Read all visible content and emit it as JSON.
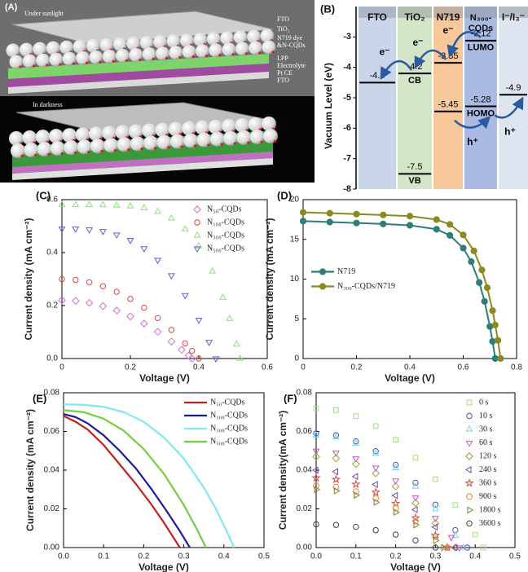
{
  "panel_a": {
    "label": "(A)",
    "top_caption": "Under sunlight",
    "layers": [
      "FTO",
      "TiO₂",
      "N719 dye",
      "&N-CQDs",
      "LPP",
      "Electrolyte",
      "Pt CE",
      "FTO"
    ],
    "bottom_caption": "In darkness"
  },
  "chart_data": [
    {
      "type": "energy-level",
      "label": "(B)",
      "ylabel": "Vacuum Level (eV)",
      "ylim": [
        -8,
        -2
      ],
      "yticks": [
        -3,
        -4,
        -5,
        -6,
        -7,
        -8
      ],
      "columns": [
        {
          "name": [
            "FTO"
          ],
          "color": "#c9d6ea",
          "levels": [
            -4.5
          ],
          "level_names": [
            null
          ]
        },
        {
          "name": [
            "TiO₂"
          ],
          "color": "#d4e6c8",
          "levels": [
            -4.2,
            -7.5
          ],
          "level_names": [
            "CB",
            "VB"
          ]
        },
        {
          "name": [
            "N719"
          ],
          "color": "#f6c89a",
          "levels": [
            -3.85,
            -5.45
          ],
          "level_names": [
            null,
            null
          ]
        },
        {
          "name": [
            "N₃₀₀-",
            "CQDs"
          ],
          "color": "#aabbe3",
          "levels": [
            -3.12,
            -5.28
          ],
          "level_names": [
            "LUMO",
            "HOMO"
          ]
        },
        {
          "name": [
            "I⁻/I₃⁻"
          ],
          "color": "#dfe5f0",
          "levels": [
            -4.9
          ],
          "level_names": [
            null
          ]
        }
      ],
      "annotations": [
        "e⁻",
        "e⁻",
        "e⁻",
        "h⁺",
        "h⁺"
      ]
    },
    {
      "type": "scatter",
      "label": "(C)",
      "xlabel": "Voltage (V)",
      "ylabel": "Current density (mA cm⁻²)",
      "xlim": [
        0,
        0.6
      ],
      "xticks": [
        0,
        0.2,
        0.4,
        0.6
      ],
      "ylim": [
        0,
        0.6
      ],
      "yticks": [
        {
          "value": 0,
          "label": "0.0"
        },
        0.2,
        0.4,
        0.6
      ],
      "legend": "upper right",
      "series": [
        {
          "name": "N₅₀-CQDs",
          "color": "#d070d0",
          "marker": "diamond",
          "x": [
            0,
            0.04,
            0.08,
            0.12,
            0.16,
            0.2,
            0.24,
            0.28,
            0.32,
            0.35,
            0.37,
            0.38
          ],
          "values": [
            0.22,
            0.218,
            0.21,
            0.198,
            0.181,
            0.159,
            0.132,
            0.101,
            0.064,
            0.033,
            0.011,
            0
          ]
        },
        {
          "name": "N₁₀₀-CQDs",
          "color": "#d84848",
          "marker": "circle",
          "x": [
            0,
            0.04,
            0.08,
            0.12,
            0.16,
            0.2,
            0.24,
            0.28,
            0.32,
            0.36,
            0.38,
            0.4
          ],
          "values": [
            0.3,
            0.297,
            0.288,
            0.273,
            0.252,
            0.225,
            0.192,
            0.153,
            0.108,
            0.057,
            0.029,
            0
          ]
        },
        {
          "name": "N₃₀₀-CQDs",
          "color": "#8ee07a",
          "marker": "triangle",
          "x": [
            0,
            0.04,
            0.08,
            0.12,
            0.16,
            0.2,
            0.24,
            0.28,
            0.32,
            0.36,
            0.4,
            0.44,
            0.47,
            0.49,
            0.51,
            0.52
          ],
          "values": [
            0.58,
            0.58,
            0.58,
            0.58,
            0.578,
            0.575,
            0.568,
            0.554,
            0.529,
            0.488,
            0.424,
            0.329,
            0.23,
            0.15,
            0.053,
            0
          ]
        },
        {
          "name": "N₅₀₀-CQDs",
          "color": "#6a5ad0",
          "marker": "triangle-down",
          "x": [
            0,
            0.04,
            0.08,
            0.12,
            0.16,
            0.2,
            0.24,
            0.28,
            0.32,
            0.36,
            0.4,
            0.43,
            0.45
          ],
          "values": [
            0.49,
            0.49,
            0.487,
            0.481,
            0.468,
            0.447,
            0.416,
            0.372,
            0.314,
            0.239,
            0.146,
            0.062,
            0
          ]
        }
      ]
    },
    {
      "type": "line",
      "markers": true,
      "label": "(D)",
      "xlabel": "Voltage (V)",
      "ylabel": "Current density (mA cm⁻²)",
      "xlim": [
        0,
        0.8
      ],
      "xticks": [
        0,
        0.2,
        0.4,
        0.6,
        0.8
      ],
      "ylim": [
        0,
        20
      ],
      "yticks": [
        0,
        5,
        10,
        15,
        20
      ],
      "legend": "center left",
      "series": [
        {
          "name": "N719",
          "color": "#2e7d7a",
          "marker": "circle",
          "x": [
            0,
            0.1,
            0.2,
            0.3,
            0.4,
            0.5,
            0.55,
            0.6,
            0.63,
            0.66,
            0.68,
            0.7,
            0.71,
            0.72
          ],
          "values": [
            17.3,
            17.18,
            17.06,
            16.94,
            16.77,
            16.27,
            15.5,
            13.9,
            12.19,
            9.57,
            7.19,
            4.03,
            2.15,
            0
          ]
        },
        {
          "name": "N₃₀₀-CQDs/N719",
          "color": "#8a8a20",
          "marker": "circle",
          "x": [
            0,
            0.1,
            0.2,
            0.3,
            0.4,
            0.5,
            0.55,
            0.6,
            0.64,
            0.67,
            0.69,
            0.71,
            0.72,
            0.73,
            0.74
          ],
          "values": [
            18.4,
            18.29,
            18.18,
            18.07,
            17.92,
            17.49,
            16.88,
            15.56,
            13.55,
            11.14,
            8.91,
            6.03,
            4.22,
            2.3,
            0
          ]
        }
      ]
    },
    {
      "type": "line",
      "label": "(E)",
      "xlabel": "Voltage (V)",
      "ylabel": "Current density (mA cm⁻²)",
      "xlim": [
        0,
        0.5
      ],
      "xticks": [
        {
          "value": 0,
          "label": "0.0"
        },
        0.1,
        0.2,
        0.3,
        0.4,
        0.5
      ],
      "ylim": [
        0,
        0.08
      ],
      "yticks": [
        {
          "value": 0,
          "label": "0.00"
        },
        0.02,
        0.04,
        0.06,
        0.08
      ],
      "legend": "upper right",
      "series": [
        {
          "name": "N₅₀-CQDs",
          "color": "#c02020",
          "x": [
            0,
            0.03,
            0.06,
            0.1,
            0.14,
            0.18,
            0.22,
            0.25,
            0.27,
            0.29
          ],
          "values": [
            0.068,
            0.065,
            0.061,
            0.053,
            0.043,
            0.033,
            0.022,
            0.013,
            0.0065,
            0
          ]
        },
        {
          "name": "N₁₀₀-CQDs",
          "color": "#1a1aa0",
          "x": [
            0,
            0.03,
            0.06,
            0.1,
            0.14,
            0.18,
            0.22,
            0.26,
            0.29,
            0.31,
            0.315
          ],
          "values": [
            0.069,
            0.0674,
            0.0642,
            0.058,
            0.05,
            0.041,
            0.03,
            0.018,
            0.0085,
            0.0017,
            0
          ]
        },
        {
          "name": "N₃₀₀-CQDs",
          "color": "#80e8f0",
          "x": [
            0,
            0.05,
            0.1,
            0.15,
            0.2,
            0.25,
            0.3,
            0.35,
            0.38,
            0.41,
            0.425
          ],
          "values": [
            0.074,
            0.0738,
            0.0727,
            0.07,
            0.065,
            0.057,
            0.046,
            0.031,
            0.02,
            0.007,
            0
          ]
        },
        {
          "name": "N₅₀₀-CQDs",
          "color": "#70d040",
          "x": [
            0,
            0.05,
            0.1,
            0.15,
            0.2,
            0.25,
            0.3,
            0.33,
            0.35,
            0.355
          ],
          "values": [
            0.071,
            0.07,
            0.0666,
            0.0604,
            0.0509,
            0.0382,
            0.022,
            0.0105,
            0.0022,
            0
          ]
        }
      ]
    },
    {
      "type": "scatter",
      "label": "(F)",
      "xlabel": "Voltage (V)",
      "ylabel": "Current density(mA cm⁻²)",
      "xlim": [
        0,
        0.5
      ],
      "xticks": [
        {
          "value": 0,
          "label": "0.0"
        },
        0.1,
        0.2,
        0.3,
        0.4,
        0.5
      ],
      "ylim": [
        0,
        0.08
      ],
      "yticks": [
        {
          "value": 0,
          "label": "0.00"
        },
        0.02,
        0.04,
        0.06,
        0.08
      ],
      "legend": "upper right",
      "series": [
        {
          "name": "0 s",
          "color": "#a0e080",
          "marker": "square",
          "x": [
            0,
            0.05,
            0.1,
            0.15,
            0.2,
            0.25,
            0.3,
            0.35,
            0.4,
            0.42
          ],
          "values": [
            0.072,
            0.071,
            0.0679,
            0.0628,
            0.0557,
            0.0465,
            0.0353,
            0.022,
            0.0067,
            0
          ]
        },
        {
          "name": "10 s",
          "color": "#5050c0",
          "marker": "circle",
          "x": [
            0,
            0.05,
            0.1,
            0.15,
            0.2,
            0.25,
            0.3,
            0.35,
            0.38
          ],
          "values": [
            0.059,
            0.058,
            0.0549,
            0.0498,
            0.0427,
            0.0335,
            0.0222,
            0.009,
            0
          ]
        },
        {
          "name": "30 s",
          "color": "#70d8e8",
          "marker": "triangle",
          "x": [
            0,
            0.05,
            0.1,
            0.15,
            0.2,
            0.25,
            0.3,
            0.35,
            0.37
          ],
          "values": [
            0.058,
            0.057,
            0.0538,
            0.0485,
            0.0411,
            0.0315,
            0.0199,
            0.0061,
            0
          ]
        },
        {
          "name": "60 s",
          "color": "#d050d0",
          "marker": "triangle-down",
          "x": [
            0,
            0.05,
            0.1,
            0.15,
            0.2,
            0.25,
            0.3,
            0.34,
            0.36
          ],
          "values": [
            0.05,
            0.049,
            0.0461,
            0.0413,
            0.0346,
            0.0259,
            0.0153,
            0.0054,
            0
          ]
        },
        {
          "name": "120 s",
          "color": "#a0a040",
          "marker": "diamond",
          "x": [
            0,
            0.05,
            0.1,
            0.15,
            0.2,
            0.25,
            0.3,
            0.35
          ],
          "values": [
            0.047,
            0.0461,
            0.0432,
            0.0384,
            0.0316,
            0.023,
            0.0125,
            0
          ]
        },
        {
          "name": "240 s",
          "color": "#7050a0",
          "marker": "triangle-left",
          "x": [
            0,
            0.05,
            0.1,
            0.15,
            0.2,
            0.25,
            0.3,
            0.35
          ],
          "values": [
            0.04,
            0.0392,
            0.0367,
            0.0326,
            0.0269,
            0.0196,
            0.0106,
            0
          ]
        },
        {
          "name": "360 s",
          "color": "#d04848",
          "marker": "star",
          "x": [
            0,
            0.05,
            0.1,
            0.15,
            0.2,
            0.25,
            0.3,
            0.33
          ],
          "values": [
            0.036,
            0.0352,
            0.0327,
            0.0286,
            0.0228,
            0.0153,
            0.0063,
            0
          ]
        },
        {
          "name": "900 s",
          "color": "#e09040",
          "marker": "hexagon",
          "x": [
            0,
            0.05,
            0.1,
            0.15,
            0.2,
            0.25,
            0.3,
            0.33
          ],
          "values": [
            0.032,
            0.0313,
            0.029,
            0.0254,
            0.0203,
            0.0136,
            0.0056,
            0
          ]
        },
        {
          "name": "1800 s",
          "color": "#808030",
          "marker": "triangle-right",
          "x": [
            0,
            0.05,
            0.1,
            0.15,
            0.2,
            0.25,
            0.3,
            0.32
          ],
          "values": [
            0.03,
            0.0293,
            0.0271,
            0.0234,
            0.0183,
            0.0117,
            0.0036,
            0
          ]
        },
        {
          "name": "3600 s",
          "color": "#404040",
          "marker": "circle",
          "x": [
            0,
            0.05,
            0.1,
            0.15,
            0.2,
            0.25,
            0.3
          ],
          "values": [
            0.012,
            0.0117,
            0.0107,
            0.009,
            0.0067,
            0.0037,
            0
          ]
        }
      ]
    }
  ]
}
